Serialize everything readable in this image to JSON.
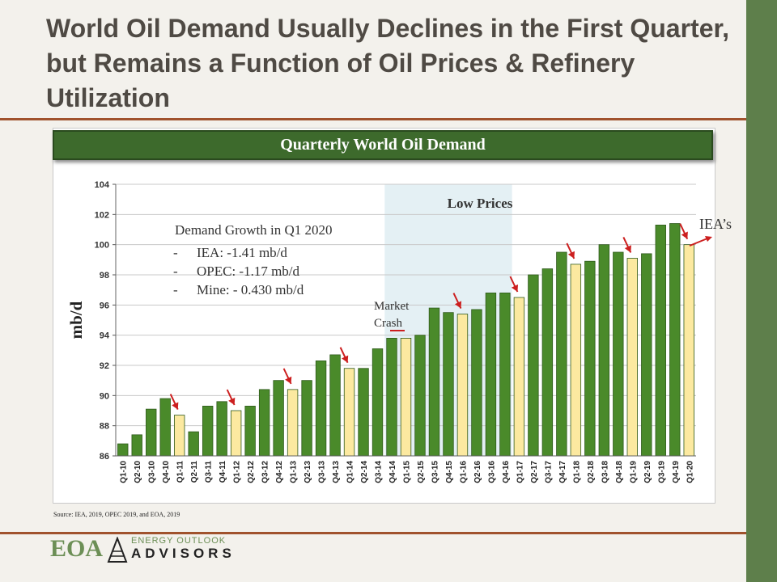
{
  "slide": {
    "title": "World Oil Demand Usually Declines in the First Quarter, but Remains a Function of Oil Prices & Refinery Utilization",
    "source": "Source:  IEA, 2019, OPEC 2019, and EOA, 2019"
  },
  "logo": {
    "eoa": "EOA",
    "tagline": "ENERGY OUTLOOK",
    "advisors": "ADVISORS"
  },
  "colors": {
    "bar_green": "#4a8a2a",
    "bar_yellow": "#fce9a0",
    "arrow_red": "#cc1f1f",
    "highlight": "#e4f0f4"
  },
  "chart_data": {
    "type": "bar",
    "title": "Quarterly World Oil Demand",
    "ylabel": "mb/d",
    "xlabel": "",
    "ylim": [
      86,
      104
    ],
    "yticks": [
      86,
      88,
      90,
      92,
      94,
      96,
      98,
      100,
      102,
      104
    ],
    "grid": true,
    "categories": [
      "Q1-10",
      "Q2-10",
      "Q3-10",
      "Q4-10",
      "Q1-11",
      "Q2-11",
      "Q3-11",
      "Q4-11",
      "Q1-12",
      "Q2-12",
      "Q3-12",
      "Q4-12",
      "Q1-13",
      "Q2-13",
      "Q3-13",
      "Q4-13",
      "Q1-14",
      "Q2-14",
      "Q3-14",
      "Q4-14",
      "Q1-15",
      "Q2-15",
      "Q3-15",
      "Q4-15",
      "Q1-16",
      "Q2-16",
      "Q3-16",
      "Q4-16",
      "Q1-17",
      "Q2-17",
      "Q3-17",
      "Q4-17",
      "Q1-18",
      "Q2-18",
      "Q3-18",
      "Q4-18",
      "Q1-19",
      "Q2-19",
      "Q3-19",
      "Q4-19",
      "Q1-20"
    ],
    "values": [
      86.8,
      87.4,
      89.1,
      89.8,
      88.7,
      87.6,
      89.3,
      89.6,
      89.0,
      89.3,
      90.4,
      91.0,
      90.4,
      91.0,
      92.3,
      92.7,
      91.8,
      91.8,
      93.1,
      93.8,
      93.8,
      94.0,
      95.8,
      95.5,
      95.4,
      95.7,
      96.8,
      96.8,
      96.5,
      98.0,
      98.4,
      99.5,
      98.7,
      98.9,
      100.0,
      99.5,
      99.1,
      99.4,
      101.3,
      101.4,
      100.0
    ],
    "highlighted_quarters": [
      "Q1-11",
      "Q1-12",
      "Q1-13",
      "Q1-14",
      "Q1-15",
      "Q1-16",
      "Q1-17",
      "Q1-18",
      "Q1-19",
      "Q1-20"
    ],
    "decline_arrows_at": [
      "Q1-11",
      "Q1-12",
      "Q1-13",
      "Q1-14",
      "Q1-16",
      "Q1-17",
      "Q1-18",
      "Q1-19",
      "Q1-20"
    ],
    "shaded_region": {
      "label": "Low Prices",
      "from": "Q4-14",
      "to": "Q4-16"
    },
    "annotations": {
      "growth_title": "Demand Growth in Q1 2020",
      "growth_lines": [
        {
          "marker": "-",
          "text": "IEA: -1.41 mb/d"
        },
        {
          "marker": "-",
          "text": "OPEC: -1.17 mb/d"
        },
        {
          "marker": "-",
          "text": "Mine: - 0.430 mb/d"
        }
      ],
      "market_crash_line1": "Market",
      "market_crash_line2": "Crash",
      "iea_label": "IEA’s"
    }
  }
}
